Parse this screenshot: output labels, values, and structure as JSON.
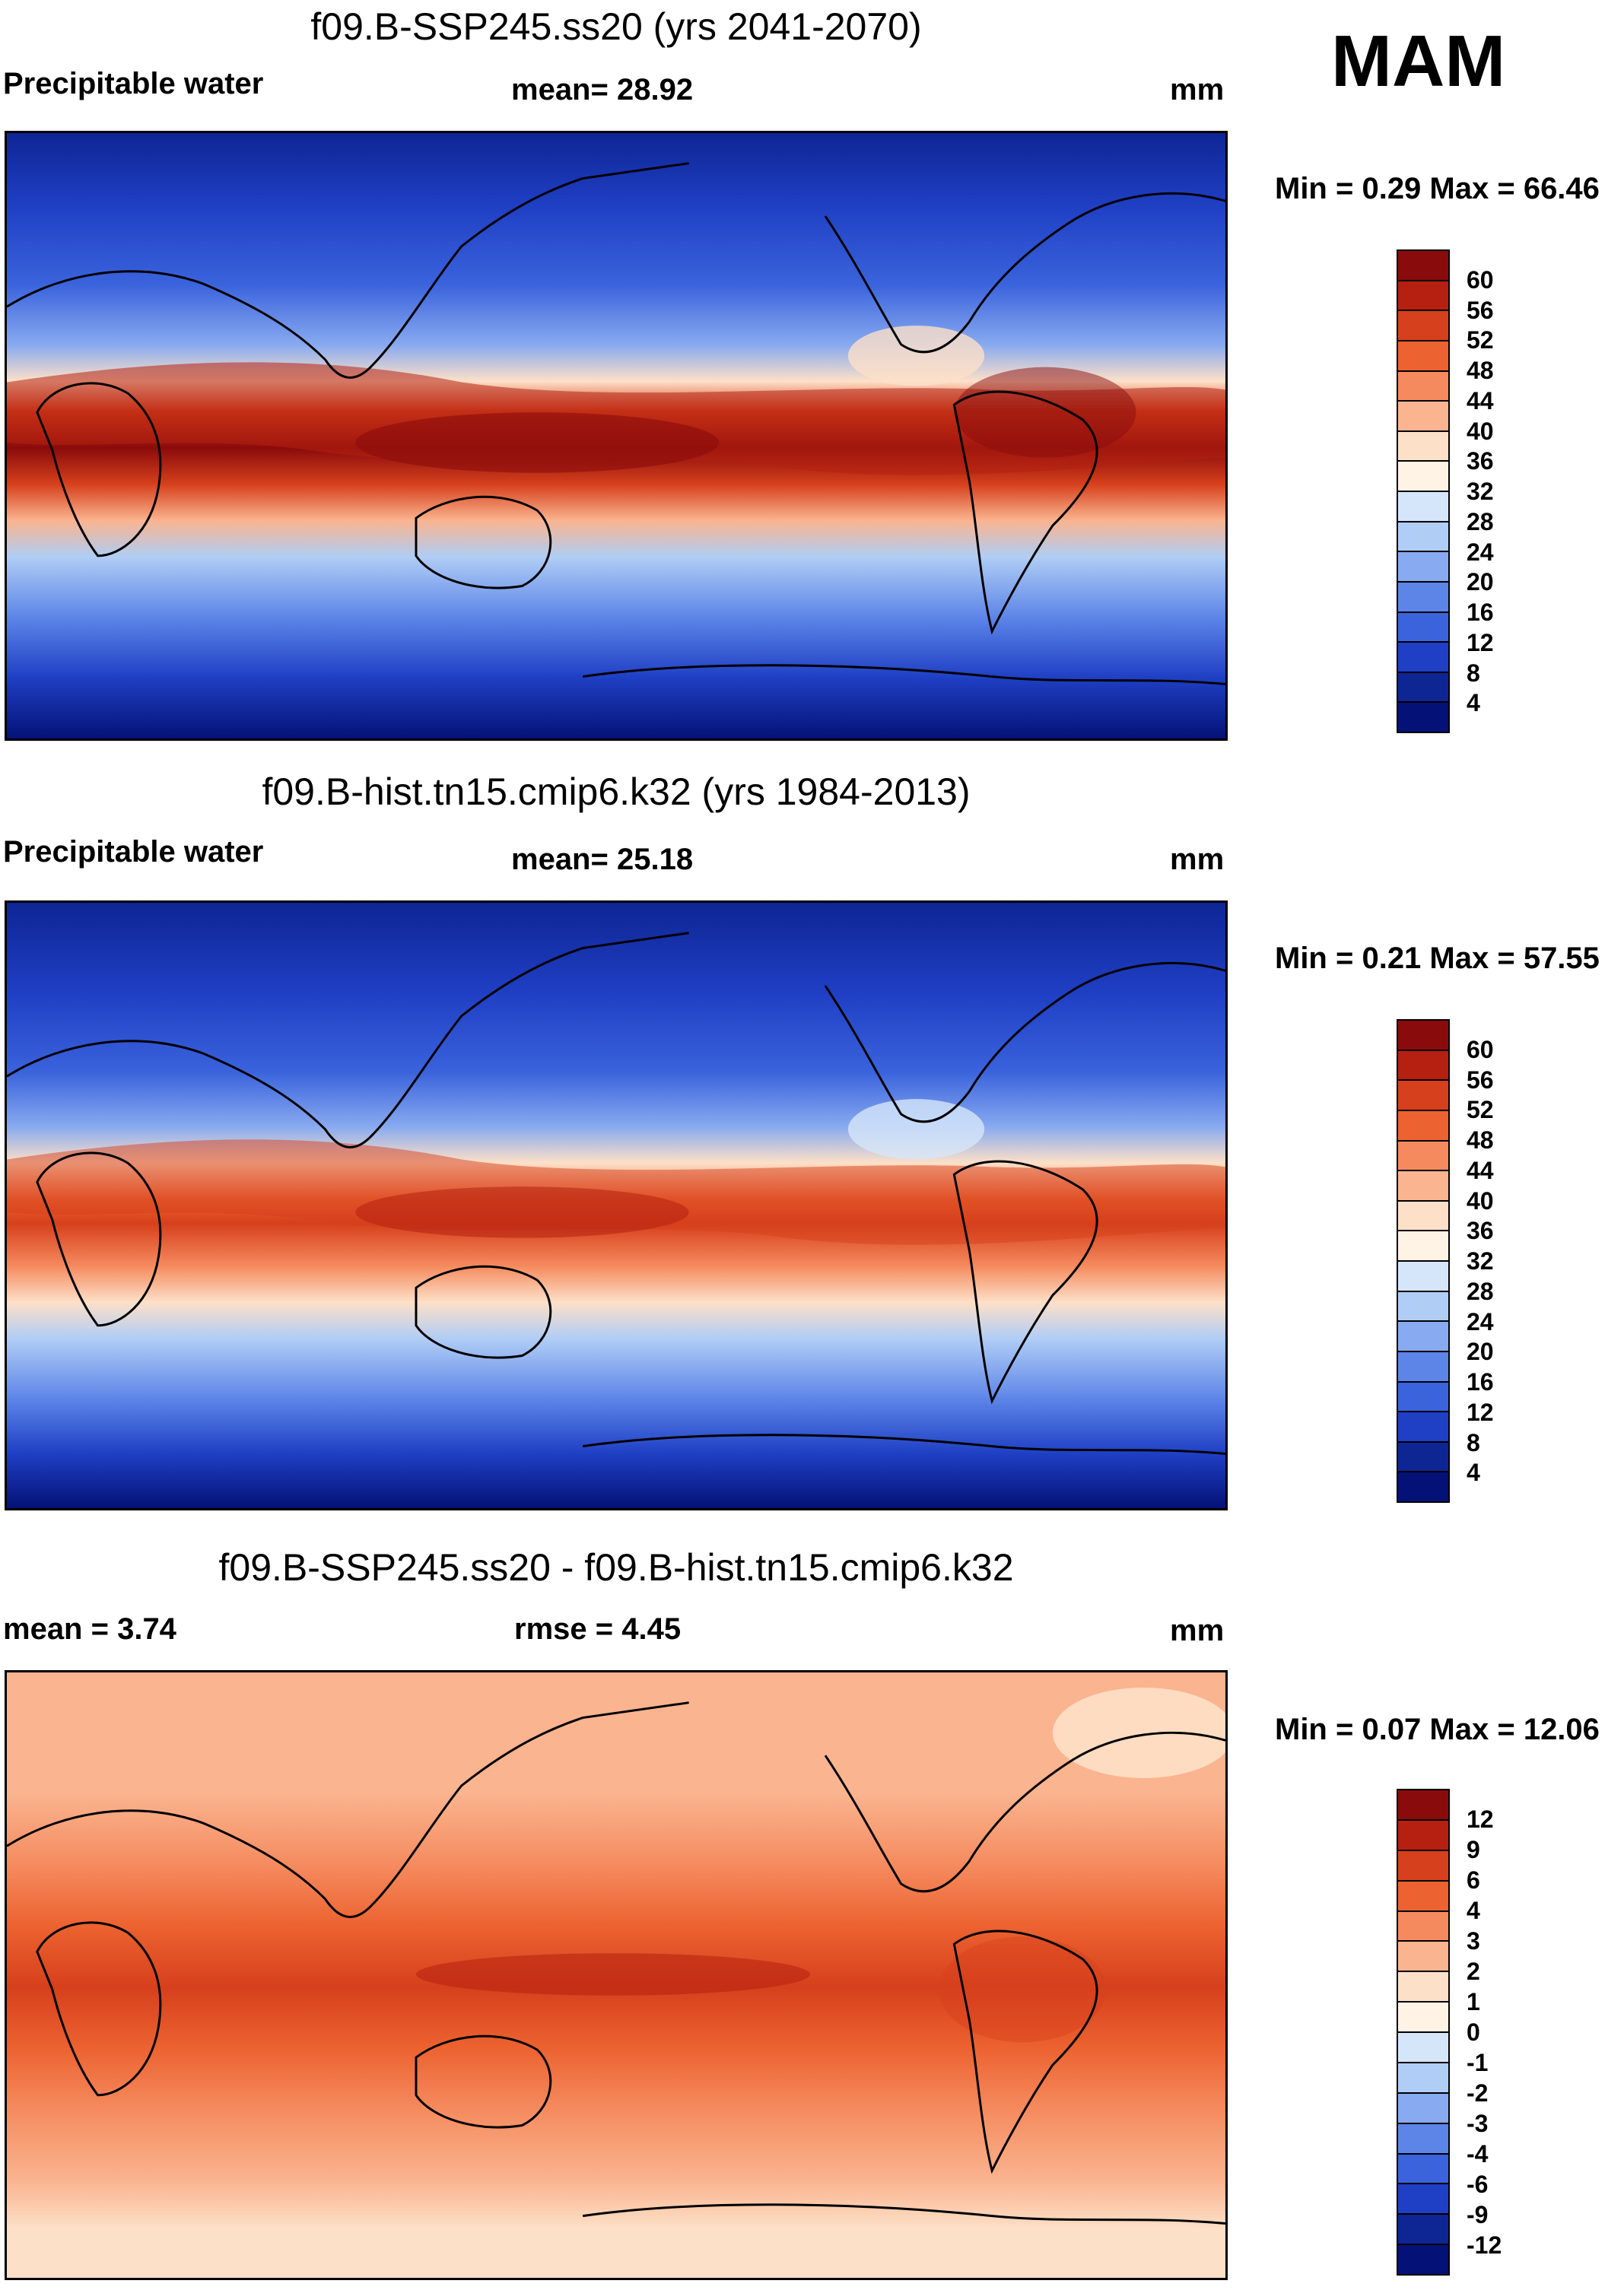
{
  "season": "MAM",
  "panels": [
    {
      "title": "f09.B-SSP245.ss20 (yrs 2041-2070)",
      "left_label": "Precipitable water",
      "center_label": "mean=  28.92",
      "units": "mm",
      "minmax": "Min =   0.29 Max =  66.46",
      "legend_labels": [
        "60",
        "56",
        "52",
        "48",
        "44",
        "40",
        "36",
        "32",
        "28",
        "24",
        "20",
        "16",
        "12",
        "8",
        "4"
      ],
      "legend_colors": [
        "#8a0b0b",
        "#b52010",
        "#d6401c",
        "#ec6230",
        "#f58a5e",
        "#fab48f",
        "#fde0c8",
        "#fff3e6",
        "#d6e6fa",
        "#b0cdf5",
        "#88aaf0",
        "#5d85e8",
        "#3a63dc",
        "#1f3fc4",
        "#0e2594",
        "#041277"
      ]
    },
    {
      "title": "f09.B-hist.tn15.cmip6.k32 (yrs 1984-2013)",
      "left_label": "Precipitable water",
      "center_label": "mean=  25.18",
      "units": "mm",
      "minmax": "Min =   0.21 Max =  57.55",
      "legend_labels": [
        "60",
        "56",
        "52",
        "48",
        "44",
        "40",
        "36",
        "32",
        "28",
        "24",
        "20",
        "16",
        "12",
        "8",
        "4"
      ],
      "legend_colors": [
        "#8a0b0b",
        "#b52010",
        "#d6401c",
        "#ec6230",
        "#f58a5e",
        "#fab48f",
        "#fde0c8",
        "#fff3e6",
        "#d6e6fa",
        "#b0cdf5",
        "#88aaf0",
        "#5d85e8",
        "#3a63dc",
        "#1f3fc4",
        "#0e2594",
        "#041277"
      ]
    },
    {
      "title": "f09.B-SSP245.ss20 - f09.B-hist.tn15.cmip6.k32",
      "left_label": "mean =    3.74",
      "center_label": "rmse =    4.45",
      "units": "mm",
      "minmax": "Min =   0.07 Max =  12.06",
      "legend_labels": [
        "12",
        "9",
        "6",
        "4",
        "3",
        "2",
        "1",
        "0",
        "-1",
        "-2",
        "-3",
        "-4",
        "-6",
        "-9",
        "-12"
      ],
      "legend_colors": [
        "#8a0b0b",
        "#b52010",
        "#d6401c",
        "#ec6230",
        "#f58a5e",
        "#fab48f",
        "#fde0c8",
        "#fff3e6",
        "#d6e6fa",
        "#b0cdf5",
        "#88aaf0",
        "#5d85e8",
        "#3a63dc",
        "#1f3fc4",
        "#0e2594",
        "#041277"
      ]
    }
  ]
}
